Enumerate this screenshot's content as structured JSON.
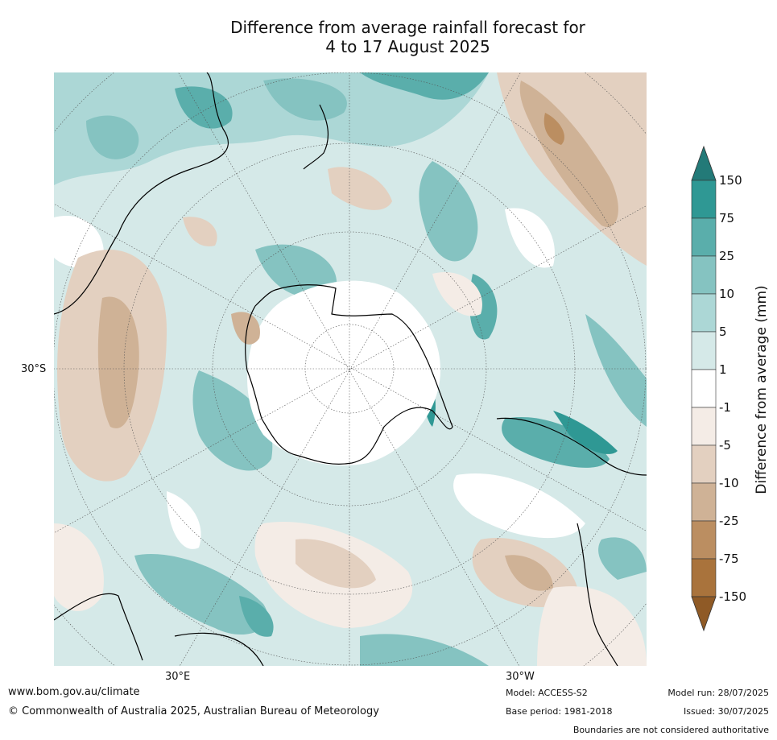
{
  "title": {
    "line1": "Difference from average rainfall forecast for",
    "line2": "4 to 17 August 2025"
  },
  "map": {
    "projection": "south polar stereographic",
    "lat_label": "30°S",
    "lon_labels": [
      "30°E",
      "30°W"
    ]
  },
  "legend": {
    "title": "Difference from average (mm)",
    "levels": [
      "150",
      "75",
      "25",
      "10",
      "5",
      "1",
      "-1",
      "-5",
      "-10",
      "-25",
      "-75",
      "-150"
    ],
    "colors": [
      "#237a78",
      "#2f9894",
      "#5aaeab",
      "#85c3c1",
      "#acd7d6",
      "#d5e9e8",
      "#ffffff",
      "#f4ece6",
      "#e3d0c0",
      "#cfb296",
      "#bb8e61",
      "#a9733c",
      "#8f5a26"
    ]
  },
  "footer": {
    "website": "www.bom.gov.au/climate",
    "copyright": "© Commonwealth of Australia 2025, Australian Bureau of Meteorology",
    "model": "Model: ACCESS-S2",
    "base_period": "Base period: 1981-2018",
    "model_run": "Model run: 28/07/2025",
    "issued": "Issued: 30/07/2025",
    "disclaimer": "Boundaries are not considered authoritative"
  }
}
